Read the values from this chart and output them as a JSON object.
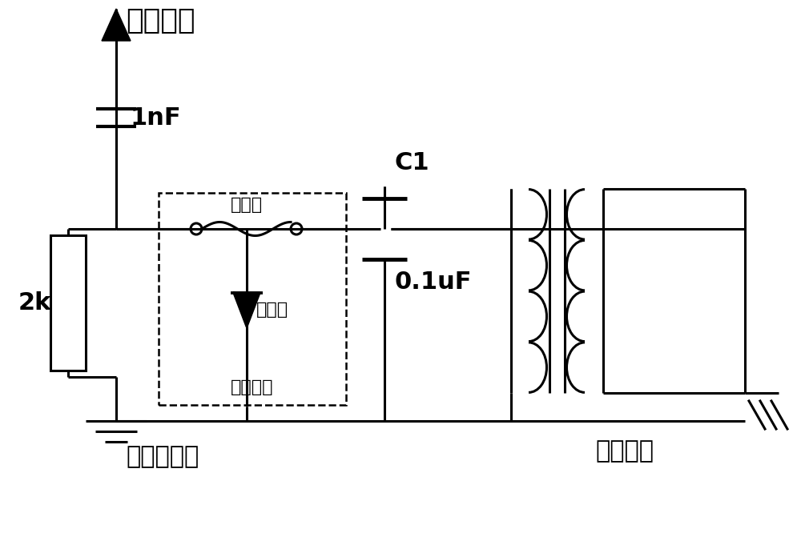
{
  "bg_color": "#ffffff",
  "line_color": "#000000",
  "line_width": 2.2,
  "labels": {
    "hv_source": "高压电源",
    "cap1nF": "1nF",
    "C1": "C1",
    "cap01uF": "0.1uF",
    "resistor2k": "2k",
    "fuse": "保险丝",
    "discharge_tube": "放电管",
    "protection": "保护电路",
    "ground": "一次侧地线",
    "isolation": "隔离部件"
  },
  "font_size_title": 26,
  "font_size_label": 22,
  "font_size_small": 16
}
